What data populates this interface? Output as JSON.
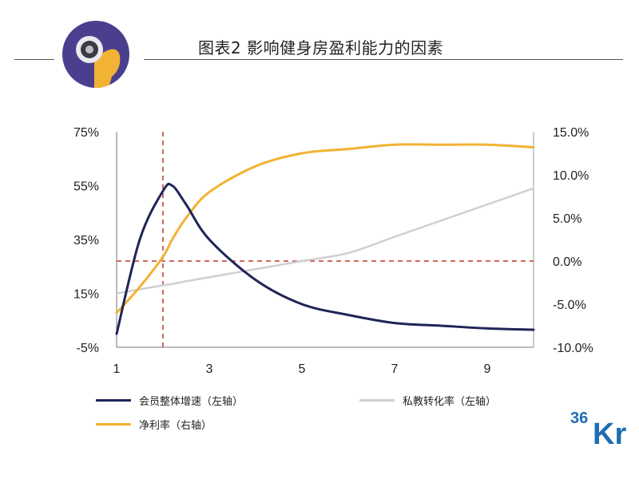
{
  "title": "图表2  影响健身房盈利能力的因素",
  "colors": {
    "member_growth": "#1f2557",
    "pt_conversion": "#cfcfd1",
    "net_margin": "#f2b233",
    "reference": "#c0392b",
    "logo_bg": "#4a3f8e",
    "brand_blue": "#1f6db3"
  },
  "chart_data": {
    "type": "line",
    "x": [
      1,
      1.5,
      2,
      2.2,
      2.5,
      3,
      4,
      5,
      6,
      7,
      8,
      9,
      10
    ],
    "xticks": [
      "1",
      "3",
      "5",
      "7",
      "9"
    ],
    "xlim": [
      1,
      10
    ],
    "ylim_left": [
      -5,
      75
    ],
    "ylim_right": [
      -10,
      15
    ],
    "yticks_left": [
      "75%",
      "55%",
      "35%",
      "15%",
      "-5%"
    ],
    "yticks_right": [
      "15.0%",
      "10.0%",
      "5.0%",
      "0.0%",
      "-5.0%",
      "-10.0%"
    ],
    "reference_x": 2,
    "reference_y_right": 0,
    "series": [
      {
        "name": "会员整体增速（左轴）",
        "axis": "left",
        "values": [
          0,
          35,
          53,
          55,
          48,
          35,
          20,
          11,
          7,
          4,
          3,
          2,
          1.5
        ]
      },
      {
        "name": "私教转化率（左轴）",
        "axis": "left",
        "values": [
          15,
          16.5,
          18,
          18.5,
          19.5,
          21,
          24,
          27,
          30,
          36,
          42,
          48,
          54
        ]
      },
      {
        "name": "净利率（右轴）",
        "axis": "right",
        "values": [
          -6,
          -3,
          0.5,
          2.5,
          5,
          8,
          11,
          12.5,
          13,
          13.5,
          13.5,
          13.5,
          13.2
        ]
      }
    ]
  },
  "brand": {
    "text_a": "36",
    "text_b": "Kr"
  }
}
